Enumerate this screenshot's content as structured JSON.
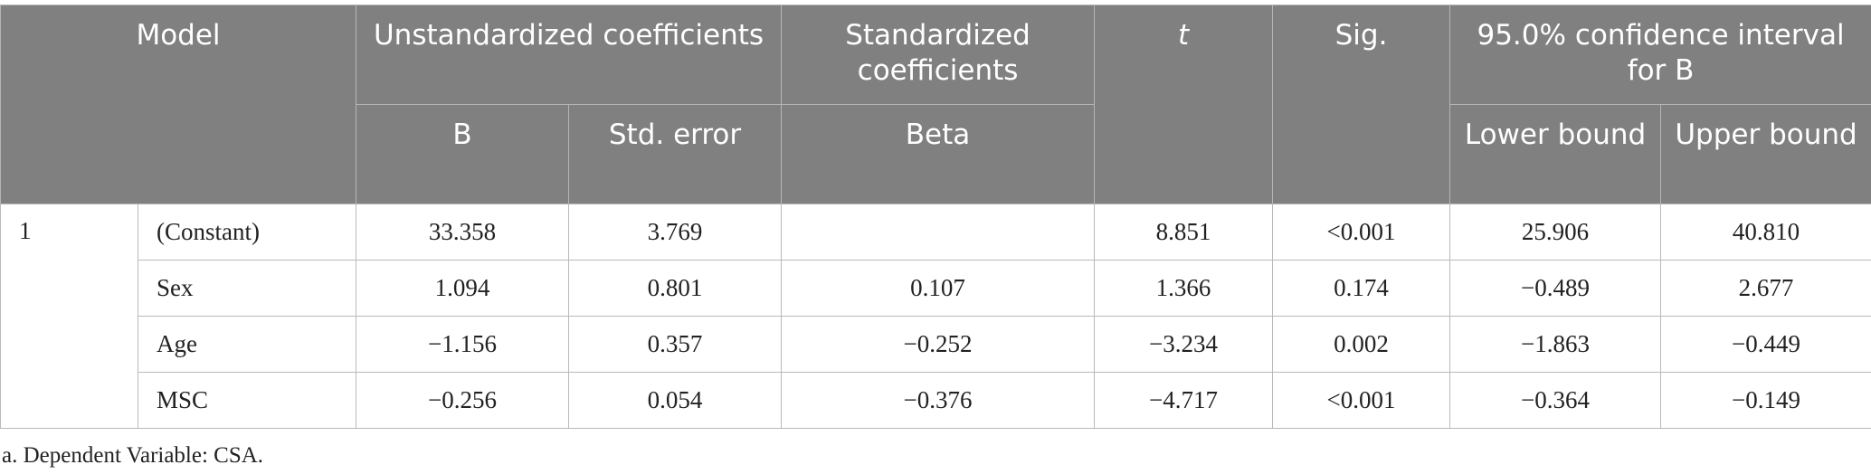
{
  "table": {
    "header": {
      "model": "Model",
      "unstd": "Unstandardized coefficients",
      "std": "Standardized coefficients",
      "t": "t",
      "sig": "Sig.",
      "ci": "95.0% confidence interval for B"
    },
    "subheader": {
      "b": "B",
      "se": "Std. error",
      "beta": "Beta",
      "lower": "Lower bound",
      "upper": "Upper bound"
    },
    "model": "1",
    "rows": [
      [
        "(Constant)",
        "33.358",
        "3.769",
        null,
        "8.851",
        "<0.001",
        "25.906",
        "40.810"
      ],
      [
        "Sex",
        "1.094",
        "0.801",
        "0.107",
        "1.366",
        "0.174",
        "−0.489",
        "2.677"
      ],
      [
        "Age",
        "−1.156",
        "0.357",
        "−0.252",
        "−3.234",
        "0.002",
        "−1.863",
        "−0.449"
      ],
      [
        "MSC",
        "−0.256",
        "0.054",
        "−0.376",
        "−4.717",
        "<0.001",
        "−0.364",
        "−0.149"
      ]
    ]
  },
  "footnote": "a. Dependent Variable: CSA."
}
